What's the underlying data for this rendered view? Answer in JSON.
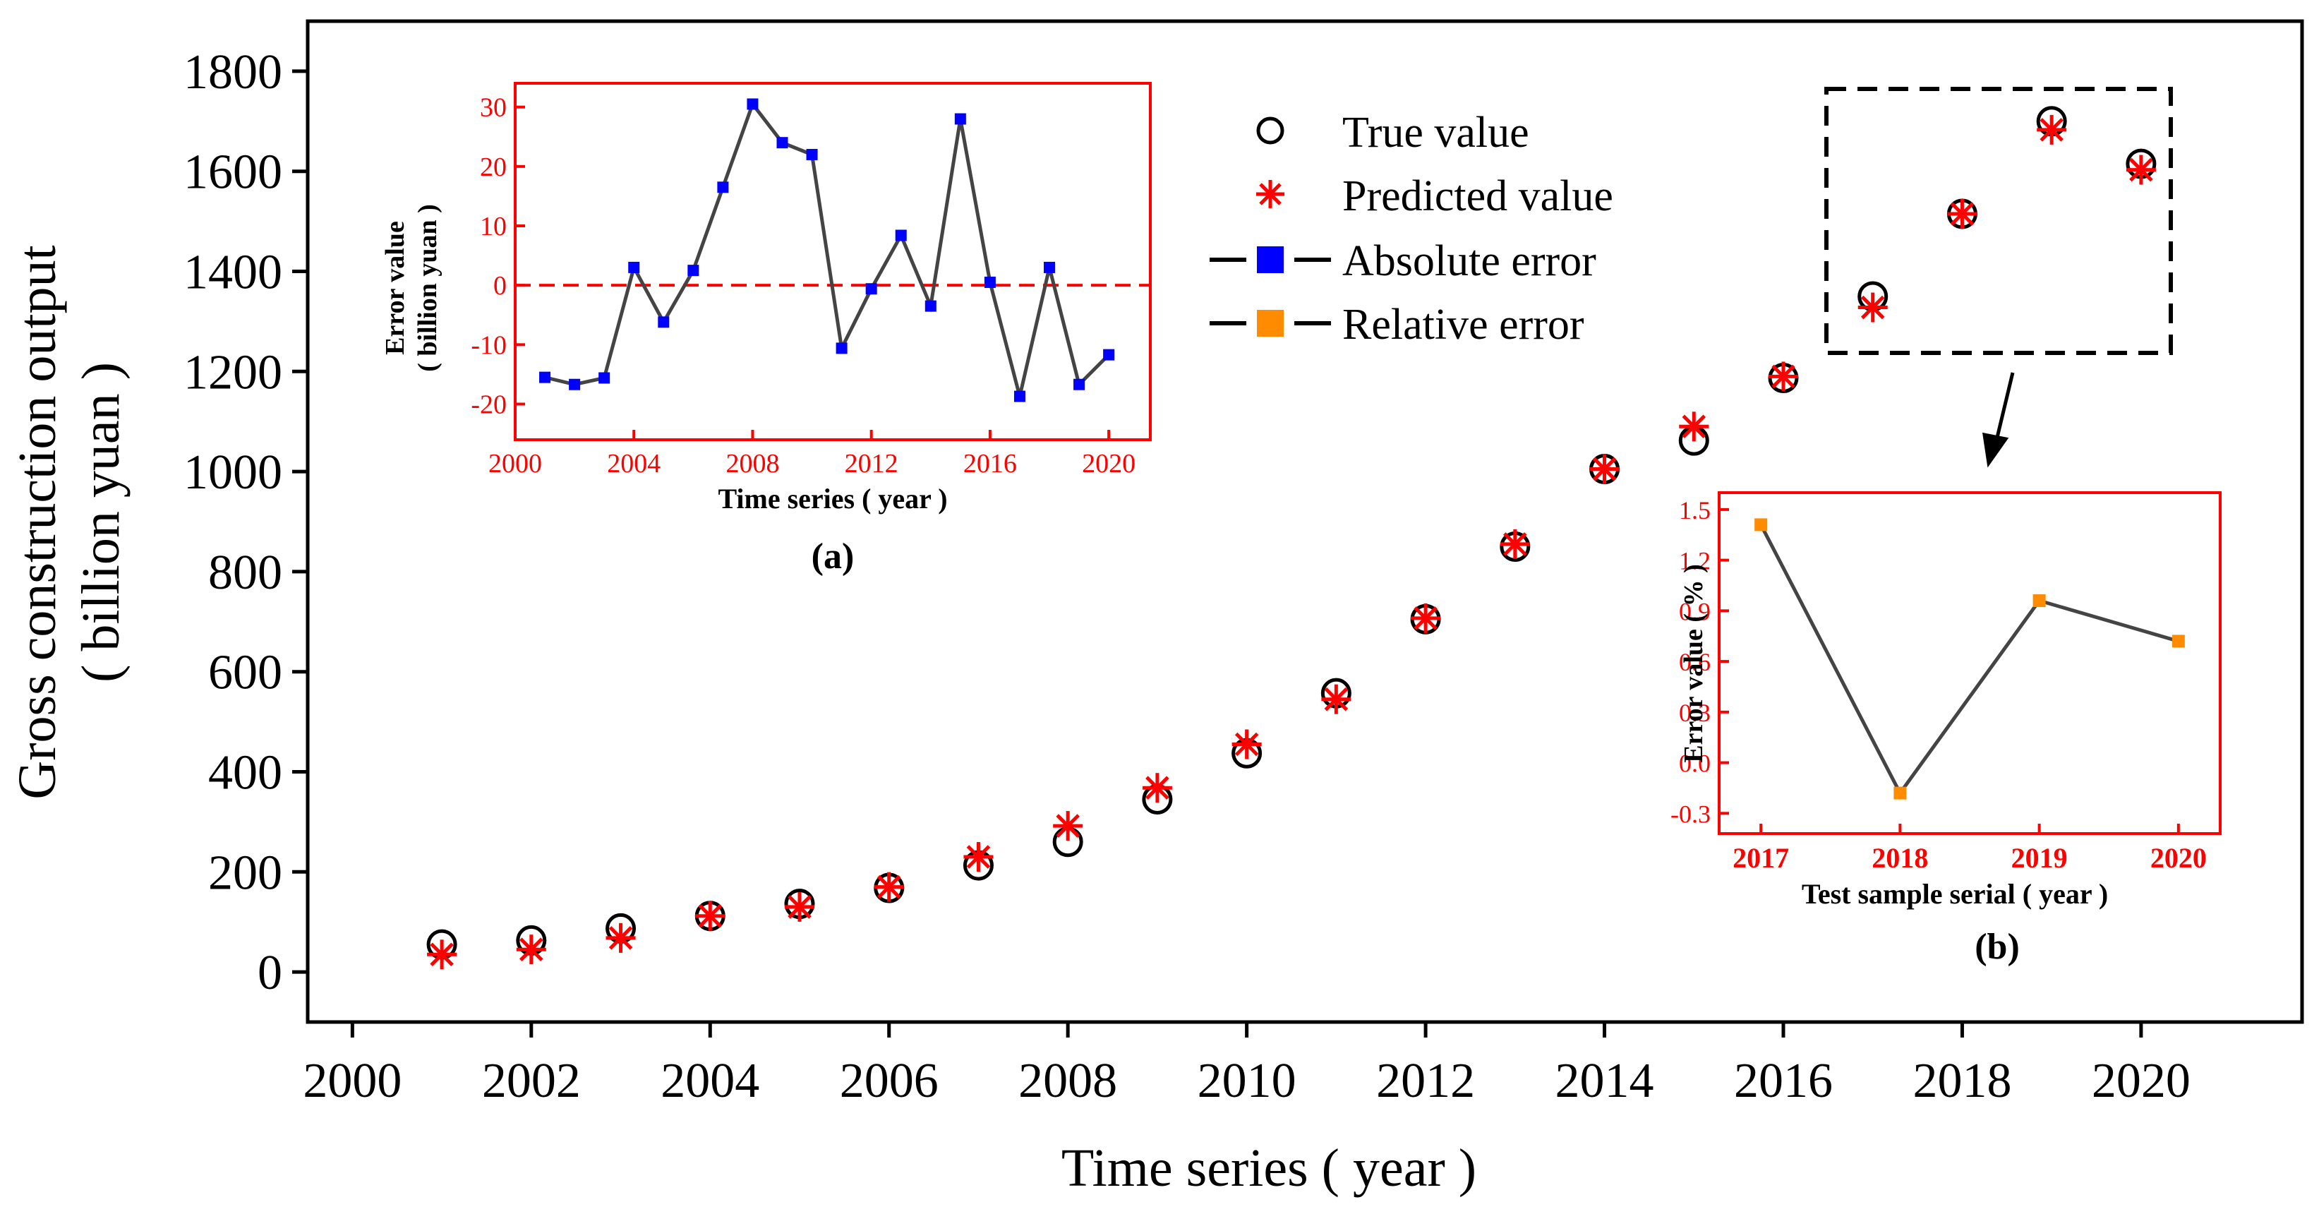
{
  "chart_data": [
    {
      "id": "main",
      "type": "scatter",
      "xlabel": "Time series ( year )",
      "ylabel_line1": "Gross construction output",
      "ylabel_line2": "( billion yuan )",
      "xlim": [
        1999.5,
        2021.8
      ],
      "ylim": [
        -100,
        1900
      ],
      "xticks": [
        2000,
        2002,
        2004,
        2006,
        2008,
        2010,
        2012,
        2014,
        2016,
        2018,
        2020
      ],
      "yticks": [
        0,
        200,
        400,
        600,
        800,
        1000,
        1200,
        1400,
        1600,
        1800
      ],
      "series": [
        {
          "name": "True value",
          "marker": "circle",
          "color": "#000000",
          "x": [
            2001,
            2002,
            2003,
            2004,
            2005,
            2006,
            2007,
            2008,
            2009,
            2010,
            2011,
            2012,
            2013,
            2014,
            2015,
            2016,
            2017,
            2018,
            2019,
            2020
          ],
          "values": [
            55,
            63,
            87,
            112,
            136,
            168,
            213,
            260,
            345,
            437,
            557,
            705,
            850,
            1005,
            1062,
            1187,
            1350,
            1515,
            1700,
            1615
          ]
        },
        {
          "name": "Predicted value",
          "marker": "asterisk",
          "color": "#ff0000",
          "x": [
            2001,
            2002,
            2003,
            2004,
            2005,
            2006,
            2007,
            2008,
            2009,
            2010,
            2011,
            2012,
            2013,
            2014,
            2015,
            2016,
            2017,
            2018,
            2019,
            2020
          ],
          "values": [
            35,
            45,
            68,
            112,
            130,
            170,
            230,
            292,
            368,
            455,
            545,
            707,
            855,
            1005,
            1090,
            1190,
            1328,
            1515,
            1683,
            1603
          ]
        }
      ],
      "legend": [
        {
          "label": "True value",
          "marker": "circle",
          "color": "#000000"
        },
        {
          "label": "Predicted value",
          "marker": "asterisk",
          "color": "#ff0000"
        },
        {
          "label": "Absolute error",
          "marker": "square-line",
          "color": "#0000ff"
        },
        {
          "label": "Relative error",
          "marker": "square-line",
          "color": "#ff8c00"
        }
      ],
      "legend_position": "top-center"
    },
    {
      "id": "inset-a",
      "type": "line",
      "caption": "(a)",
      "xlabel": "Time series ( year )",
      "ylabel_line1": "Error value",
      "ylabel_line2": "( billion yuan )",
      "xlim": [
        2000,
        2021.4
      ],
      "ylim": [
        -26,
        34
      ],
      "xticks": [
        2000,
        2004,
        2008,
        2012,
        2016,
        2020
      ],
      "yticks": [
        -20,
        -10,
        0,
        10,
        20,
        30
      ],
      "reference_line": 0,
      "series": [
        {
          "name": "Absolute error",
          "color": "#0000ff",
          "x": [
            2001,
            2002,
            2003,
            2004,
            2005,
            2006,
            2007,
            2008,
            2009,
            2010,
            2011,
            2012,
            2013,
            2014,
            2015,
            2016,
            2017,
            2018,
            2019,
            2020
          ],
          "values": [
            -15.5,
            -16.7,
            -15.6,
            3.0,
            -6.2,
            2.5,
            16.5,
            30.5,
            24.0,
            22.0,
            -10.6,
            -0.6,
            8.4,
            -3.5,
            28.0,
            0.5,
            -18.7,
            3.0,
            -16.7,
            -11.7
          ]
        }
      ]
    },
    {
      "id": "inset-b",
      "type": "line",
      "caption": "(b)",
      "xlabel": "Test sample serial ( year )",
      "ylabel": "Error value ( % )",
      "xlim": [
        2016.7,
        2020.3
      ],
      "ylim": [
        -0.42,
        1.6
      ],
      "xticks": [
        2017,
        2018,
        2019,
        2020
      ],
      "ytick_labels": [
        "1.5",
        "1.2",
        "0.9",
        "0.6",
        "0.3",
        "0.0",
        "-0.3"
      ],
      "yticks": [
        1.5,
        1.2,
        0.9,
        0.6,
        0.3,
        0.0,
        -0.3
      ],
      "series": [
        {
          "name": "Relative error",
          "color": "#ff8c00",
          "x": [
            2017,
            2018,
            2019,
            2020
          ],
          "values": [
            1.41,
            -0.18,
            0.96,
            0.72
          ]
        }
      ]
    }
  ]
}
